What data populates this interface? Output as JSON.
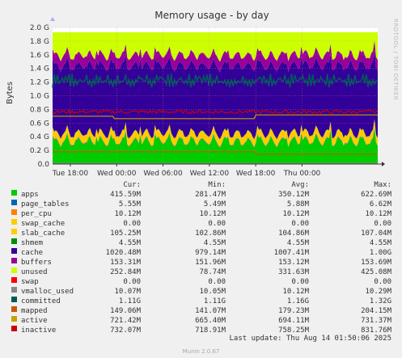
{
  "chart_data": {
    "type": "area",
    "title": "Memory usage - by day",
    "ylabel": "Bytes",
    "side_label": "RRDTOOL / TOBI OETIKER",
    "ylim": [
      0,
      2.0
    ],
    "y_unit": "G",
    "y_ticks": [
      "0.0",
      "0.2 G",
      "0.4 G",
      "0.6 G",
      "0.8 G",
      "1.0 G",
      "1.2 G",
      "1.4 G",
      "1.6 G",
      "1.8 G",
      "2.0 G"
    ],
    "x_range_hours": [
      -2.3,
      39.8
    ],
    "x_ticks": [
      {
        "label": "Tue 18:00",
        "hour": 0
      },
      {
        "label": "Wed 00:00",
        "hour": 6
      },
      {
        "label": "Wed 06:00",
        "hour": 12
      },
      {
        "label": "Wed 12:00",
        "hour": 18
      },
      {
        "label": "Wed 18:00",
        "hour": 24
      },
      {
        "label": "Thu 00:00",
        "hour": 30
      }
    ],
    "grid": true,
    "series": [
      {
        "name": "apps",
        "color": "#00cc00",
        "stacked": true,
        "avg_gb": 0.35
      },
      {
        "name": "page_tables",
        "color": "#0066b3",
        "stacked": true,
        "avg_gb": 0.006
      },
      {
        "name": "per_cpu",
        "color": "#ff8000",
        "stacked": true,
        "avg_gb": 0.01
      },
      {
        "name": "swap_cache",
        "color": "#ffcc00",
        "stacked": true,
        "avg_gb": 0.0
      },
      {
        "name": "slab_cache",
        "color": "#ffcc00",
        "stacked": true,
        "avg_gb": 0.105
      },
      {
        "name": "shmem",
        "color": "#008f00",
        "stacked": true,
        "avg_gb": 0.005
      },
      {
        "name": "cache",
        "color": "#330099",
        "stacked": true,
        "avg_gb": 1.0
      },
      {
        "name": "buffers",
        "color": "#990099",
        "stacked": true,
        "avg_gb": 0.153
      },
      {
        "name": "unused",
        "color": "#ccff00",
        "stacked": true,
        "avg_gb": 0.33
      },
      {
        "name": "swap",
        "color": "#ff0000",
        "stacked": true,
        "avg_gb": 0.0
      },
      {
        "name": "vmalloc_used",
        "color": "#888888",
        "stacked": false,
        "avg_gb": 0.01
      },
      {
        "name": "committed",
        "color": "#005a5a",
        "stacked": false,
        "avg_gb": 1.16
      },
      {
        "name": "mapped",
        "color": "#cc5500",
        "stacked": false,
        "avg_gb": 0.18
      },
      {
        "name": "active",
        "color": "#c8a000",
        "stacked": false,
        "avg_gb": 0.69
      },
      {
        "name": "inactive",
        "color": "#cc0000",
        "stacked": false,
        "avg_gb": 0.76
      }
    ]
  },
  "legend": {
    "headers": [
      "Cur:",
      "Min:",
      "Avg:",
      "Max:"
    ],
    "rows": [
      {
        "name": "apps",
        "color": "#00cc00",
        "cur": "415.59M",
        "min": "281.47M",
        "avg": "350.12M",
        "max": "622.69M"
      },
      {
        "name": "page_tables",
        "color": "#0066b3",
        "cur": "5.55M",
        "min": "5.49M",
        "avg": "5.88M",
        "max": "6.62M"
      },
      {
        "name": "per_cpu",
        "color": "#ff8000",
        "cur": "10.12M",
        "min": "10.12M",
        "avg": "10.12M",
        "max": "10.12M"
      },
      {
        "name": "swap_cache",
        "color": "#ffcc00",
        "cur": "0.00",
        "min": "0.00",
        "avg": "0.00",
        "max": "0.00"
      },
      {
        "name": "slab_cache",
        "color": "#ffcc00",
        "cur": "105.25M",
        "min": "102.86M",
        "avg": "104.86M",
        "max": "107.04M"
      },
      {
        "name": "shmem",
        "color": "#008f00",
        "cur": "4.55M",
        "min": "4.55M",
        "avg": "4.55M",
        "max": "4.55M"
      },
      {
        "name": "cache",
        "color": "#330099",
        "cur": "1020.48M",
        "min": "979.14M",
        "avg": "1007.41M",
        "max": "1.00G"
      },
      {
        "name": "buffers",
        "color": "#990099",
        "cur": "153.31M",
        "min": "151.96M",
        "avg": "153.12M",
        "max": "153.69M"
      },
      {
        "name": "unused",
        "color": "#ccff00",
        "cur": "252.84M",
        "min": "78.74M",
        "avg": "331.63M",
        "max": "425.08M"
      },
      {
        "name": "swap",
        "color": "#ff0000",
        "cur": "0.00",
        "min": "0.00",
        "avg": "0.00",
        "max": "0.00"
      },
      {
        "name": "vmalloc_used",
        "color": "#888888",
        "cur": "10.07M",
        "min": "10.05M",
        "avg": "10.12M",
        "max": "10.29M"
      },
      {
        "name": "committed",
        "color": "#005a5a",
        "cur": "1.11G",
        "min": "1.11G",
        "avg": "1.16G",
        "max": "1.32G"
      },
      {
        "name": "mapped",
        "color": "#cc5500",
        "cur": "149.06M",
        "min": "141.07M",
        "avg": "179.23M",
        "max": "204.15M"
      },
      {
        "name": "active",
        "color": "#c8a000",
        "cur": "721.42M",
        "min": "665.40M",
        "avg": "694.11M",
        "max": "731.37M"
      },
      {
        "name": "inactive",
        "color": "#cc0000",
        "cur": "732.07M",
        "min": "718.91M",
        "avg": "758.25M",
        "max": "831.76M"
      }
    ]
  },
  "last_update": "Last update: Thu Aug 14 01:50:06 2025",
  "footer": "Munin 2.0.67"
}
